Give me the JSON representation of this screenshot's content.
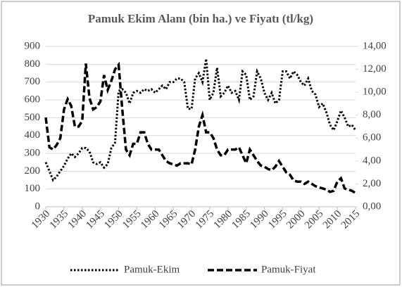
{
  "chart_data": {
    "type": "line",
    "title": "Pamuk Ekim Alanı (bin ha.) ve Fiyatı (tl/kg)",
    "x": [
      1930,
      1931,
      1932,
      1933,
      1934,
      1935,
      1936,
      1937,
      1938,
      1939,
      1940,
      1941,
      1942,
      1943,
      1944,
      1945,
      1946,
      1947,
      1948,
      1949,
      1950,
      1951,
      1952,
      1953,
      1954,
      1955,
      1956,
      1957,
      1958,
      1959,
      1960,
      1961,
      1962,
      1963,
      1964,
      1965,
      1966,
      1967,
      1968,
      1969,
      1970,
      1971,
      1972,
      1973,
      1974,
      1975,
      1976,
      1977,
      1978,
      1979,
      1980,
      1981,
      1982,
      1983,
      1984,
      1985,
      1986,
      1987,
      1988,
      1989,
      1990,
      1991,
      1992,
      1993,
      1994,
      1995,
      1996,
      1997,
      1998,
      1999,
      2000,
      2001,
      2002,
      2003,
      2004,
      2005,
      2006,
      2007,
      2008,
      2009,
      2010,
      2011,
      2012,
      2013,
      2014,
      2015
    ],
    "xlim": [
      1930,
      2015
    ],
    "xticks": [
      1930,
      1935,
      1940,
      1945,
      1950,
      1955,
      1960,
      1965,
      1970,
      1975,
      1980,
      1985,
      1990,
      1995,
      2000,
      2005,
      2010,
      2015
    ],
    "ylim": [
      0,
      900
    ],
    "yticks": [
      0,
      100,
      200,
      300,
      400,
      500,
      600,
      700,
      800,
      900
    ],
    "y2lim": [
      0,
      14
    ],
    "y2ticks": [
      {
        "value": 0,
        "label": "0,00"
      },
      {
        "value": 2,
        "label": "2,00"
      },
      {
        "value": 4,
        "label": "4,00"
      },
      {
        "value": 6,
        "label": "6,00"
      },
      {
        "value": 8,
        "label": "8,00"
      },
      {
        "value": 10,
        "label": "10,00"
      },
      {
        "value": 12,
        "label": "12,00"
      },
      {
        "value": 14,
        "label": "14,00"
      }
    ],
    "grid": true,
    "legend": "bottom",
    "series": [
      {
        "name": "Pamuk-Ekim",
        "color": "#000000",
        "style": "dotted",
        "values": [
          250,
          200,
          150,
          170,
          200,
          230,
          270,
          300,
          280,
          300,
          330,
          330,
          310,
          250,
          240,
          250,
          220,
          240,
          330,
          360,
          650,
          660,
          640,
          580,
          640,
          650,
          640,
          660,
          650,
          660,
          640,
          660,
          680,
          660,
          700,
          700,
          720,
          720,
          700,
          550,
          550,
          720,
          750,
          700,
          830,
          600,
          640,
          780,
          620,
          640,
          680,
          640,
          650,
          600,
          760,
          740,
          600,
          620,
          760,
          720,
          640,
          600,
          640,
          580,
          600,
          760,
          760,
          720,
          760,
          740,
          700,
          680,
          720,
          650,
          630,
          560,
          580,
          530,
          460,
          430,
          480,
          540,
          500,
          450,
          460,
          430
        ]
      },
      {
        "name": "Pamuk-Fiyat",
        "color": "#000000",
        "style": "dashed",
        "axis": "y2",
        "values": [
          7.8,
          5.2,
          5.0,
          5.4,
          6.0,
          8.5,
          9.4,
          8.8,
          7.0,
          7.0,
          7.5,
          12.5,
          9.5,
          8.5,
          8.7,
          9.2,
          11.5,
          10.2,
          11.0,
          12.0,
          12.4,
          8.5,
          5.0,
          4.5,
          5.5,
          5.5,
          6.5,
          6.5,
          5.5,
          5.0,
          5.0,
          5.0,
          4.5,
          4.0,
          3.8,
          3.7,
          3.6,
          3.8,
          3.8,
          3.8,
          3.7,
          5.0,
          7.0,
          8.0,
          6.5,
          6.5,
          6.0,
          5.0,
          4.5,
          4.5,
          5.0,
          5.0,
          5.0,
          5.2,
          4.5,
          3.8,
          5.0,
          4.5,
          4.0,
          3.6,
          3.5,
          3.3,
          3.2,
          3.5,
          4.0,
          3.5,
          3.0,
          2.8,
          2.3,
          2.2,
          2.2,
          2.0,
          2.2,
          2.0,
          1.8,
          1.7,
          1.6,
          1.5,
          1.3,
          1.4,
          2.2,
          2.5,
          1.6,
          1.5,
          1.4,
          1.2
        ]
      }
    ]
  }
}
